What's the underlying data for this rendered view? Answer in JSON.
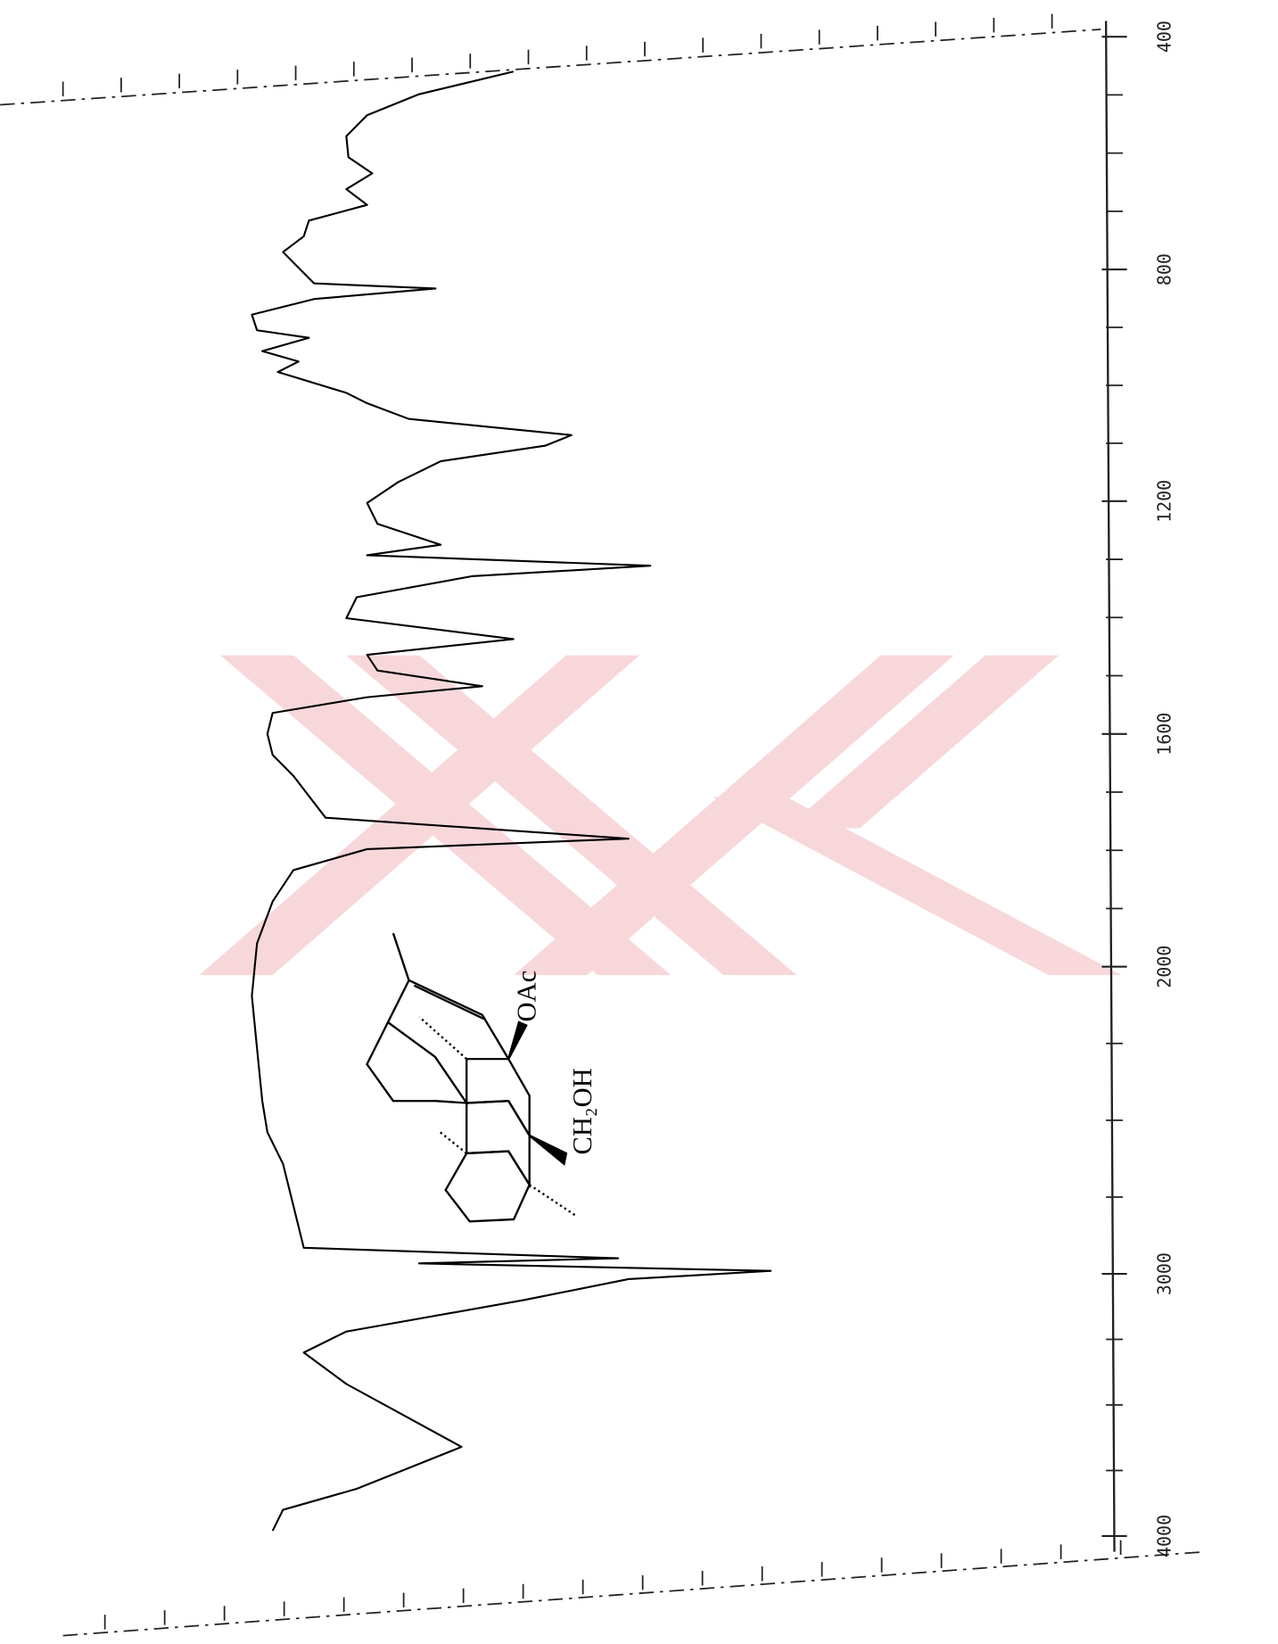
{
  "chart_data": {
    "type": "line",
    "x": [
      460,
      499,
      535,
      571,
      607,
      635,
      662,
      689,
      716,
      743,
      770,
      797,
      824,
      833,
      851,
      878,
      905,
      918,
      941,
      959,
      977,
      1013,
      1031,
      1058,
      1086,
      1104,
      1131,
      1167,
      1203,
      1239,
      1275,
      1293,
      1311,
      1329,
      1365,
      1401,
      1437,
      1464,
      1491,
      1518,
      1537,
      1564,
      1600,
      1636,
      1672,
      1744,
      1780,
      1798,
      1834,
      1888,
      1960,
      2095,
      2266,
      2437,
      2539,
      2642,
      2778,
      2915,
      2949,
      2966,
      2990,
      3020,
      3100,
      3220,
      3300,
      3420,
      3660,
      3820,
      3900,
      3980
    ],
    "series": [
      {
        "color": "#000000",
        "values": [
          56.6,
          65.7,
          70.7,
          72.7,
          72.5,
          70.2,
          72.7,
          70.7,
          76.3,
          76.8,
          78.8,
          77.3,
          75.8,
          64.1,
          75.8,
          81.8,
          81.3,
          76.3,
          80.8,
          77.3,
          79.3,
          72.7,
          70.7,
          66.7,
          51.0,
          53.5,
          63.6,
          67.7,
          70.7,
          69.7,
          63.6,
          70.7,
          43.4,
          60.6,
          71.7,
          72.7,
          56.6,
          70.7,
          69.7,
          59.6,
          70.7,
          79.8,
          80.3,
          79.8,
          77.8,
          74.7,
          45.5,
          70.7,
          77.8,
          79.8,
          81.3,
          81.8,
          81.3,
          80.8,
          80.3,
          78.8,
          77.8,
          76.8,
          46.5,
          65.7,
          31.8,
          45.5,
          55.6,
          72.7,
          76.8,
          72.7,
          61.6,
          71.7,
          78.8,
          79.8
        ]
      }
    ],
    "xlim": [
      400,
      4000
    ],
    "ylim": [
      0,
      100
    ],
    "xticks": [
      400,
      800,
      1200,
      1600,
      2000,
      3000,
      4000
    ],
    "annotations": [
      "OAc",
      "CH₂OH"
    ]
  }
}
